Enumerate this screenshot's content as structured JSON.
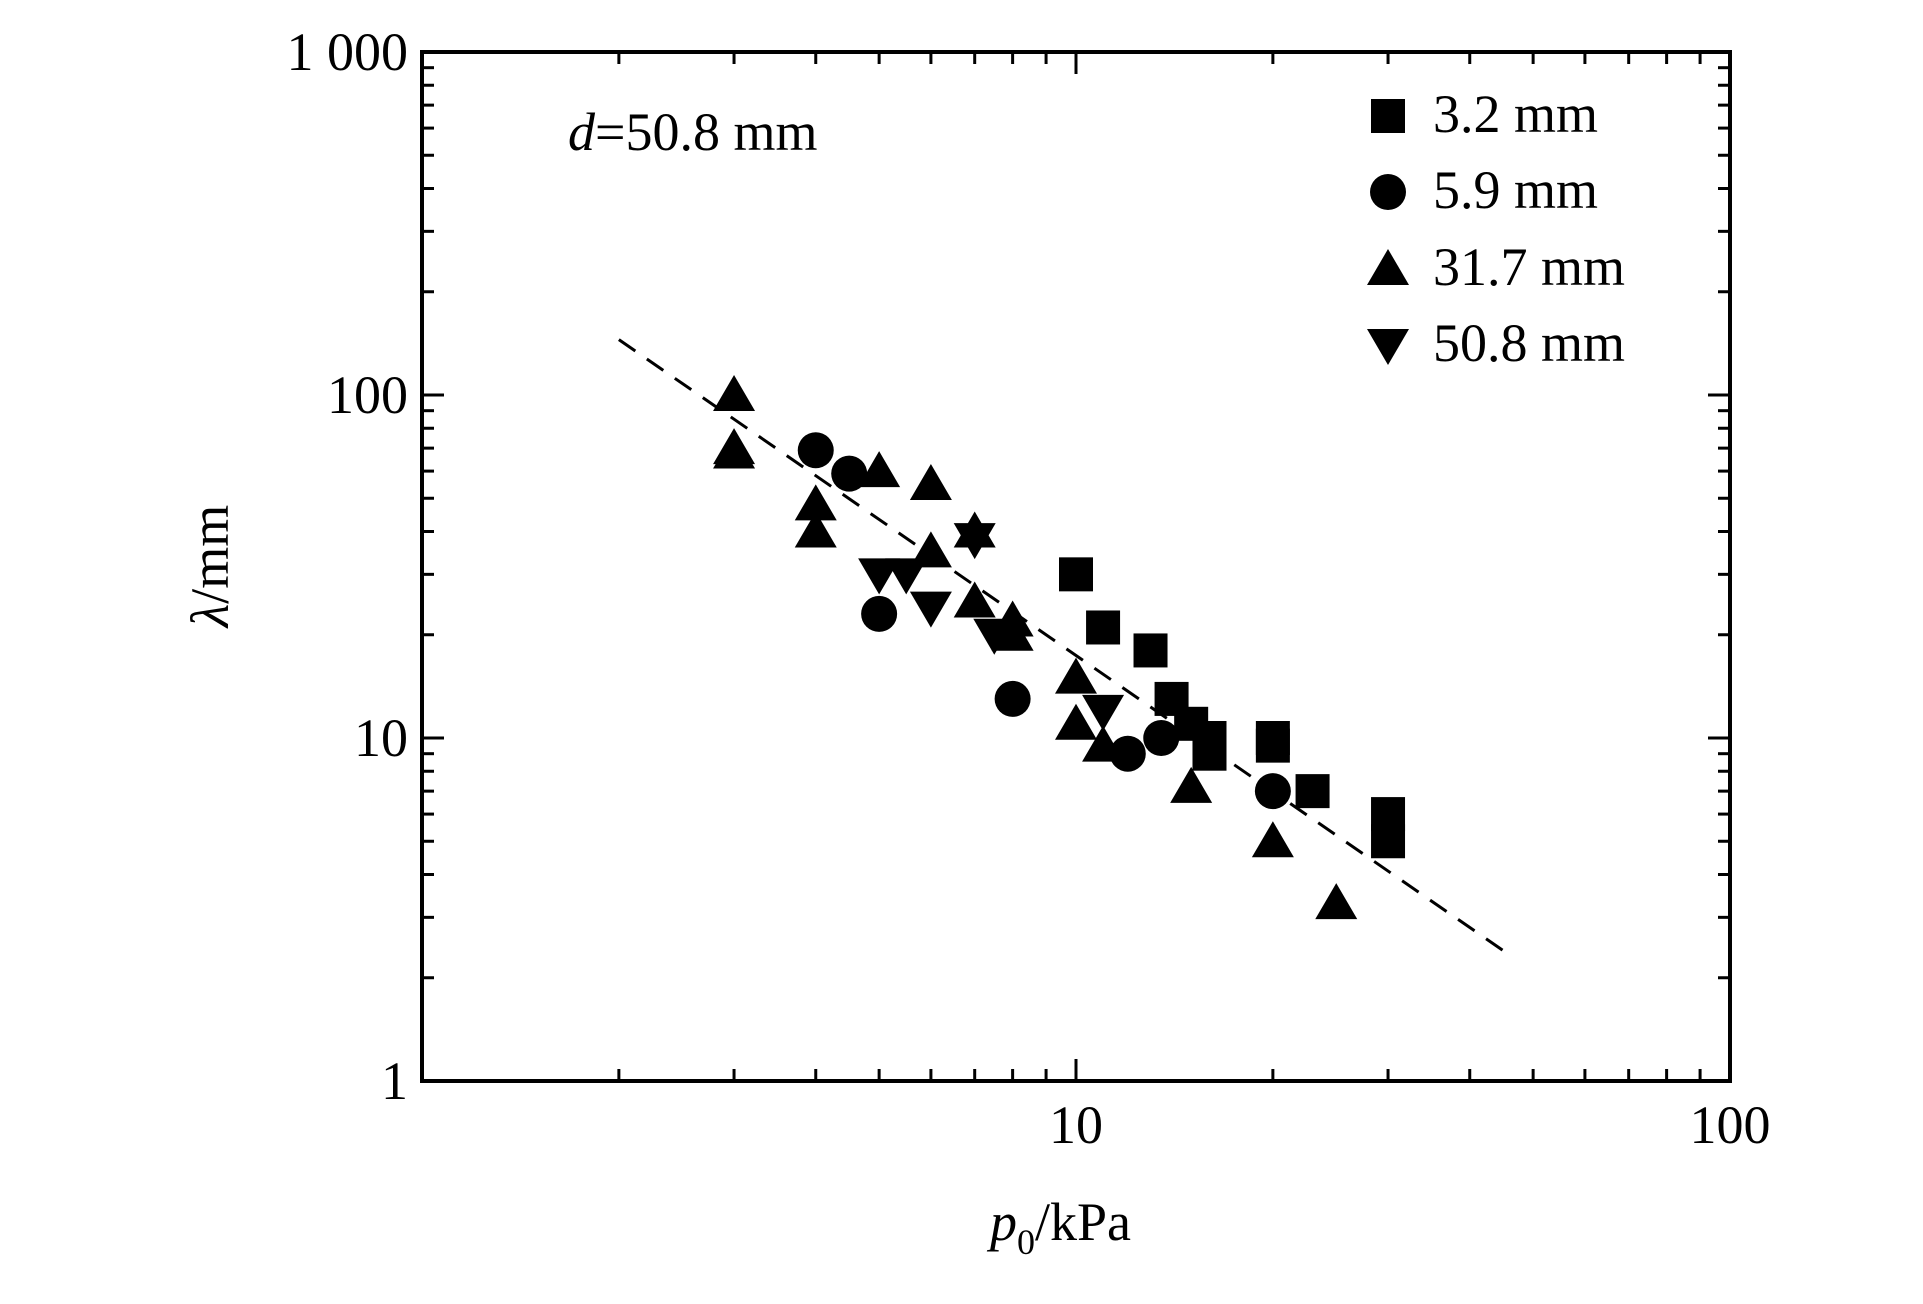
{
  "chart_data": {
    "type": "scatter",
    "title": "",
    "annotation": {
      "italic": "d",
      "rest": "=50.8 mm"
    },
    "xlabel": {
      "main": "p",
      "sub": "0",
      "unit": "/kPa"
    },
    "ylabel": {
      "main": "λ",
      "unit": "/mm"
    },
    "xscale": "log",
    "yscale": "log",
    "xlim": [
      1,
      100
    ],
    "ylim": [
      1,
      1000
    ],
    "x_ticks": [
      {
        "value": 10,
        "label": "10"
      },
      {
        "value": 100,
        "label": "100"
      }
    ],
    "y_ticks": [
      {
        "value": 1,
        "label": "1"
      },
      {
        "value": 10,
        "label": "10"
      },
      {
        "value": 100,
        "label": "100"
      },
      {
        "value": 1000,
        "label": "1 000"
      }
    ],
    "legend_position": "top-right",
    "series": [
      {
        "name": "3.2 mm",
        "marker": "square",
        "points": [
          [
            10,
            30
          ],
          [
            11,
            21
          ],
          [
            13,
            18
          ],
          [
            14,
            13
          ],
          [
            15,
            11
          ],
          [
            16,
            9
          ],
          [
            16,
            10
          ],
          [
            20,
            10
          ],
          [
            20,
            9.5
          ],
          [
            23,
            7
          ],
          [
            30,
            6
          ],
          [
            30,
            5
          ]
        ]
      },
      {
        "name": "5.9 mm",
        "marker": "circle",
        "points": [
          [
            4,
            69
          ],
          [
            4.5,
            59
          ],
          [
            5,
            23
          ],
          [
            8,
            13
          ],
          [
            12,
            9
          ],
          [
            13.5,
            10
          ],
          [
            20,
            7
          ]
        ]
      },
      {
        "name": "31.7 mm",
        "marker": "triangle-up",
        "points": [
          [
            3,
            100
          ],
          [
            3,
            70
          ],
          [
            3,
            68
          ],
          [
            4,
            48
          ],
          [
            4,
            40
          ],
          [
            5,
            60
          ],
          [
            6,
            55
          ],
          [
            6,
            35
          ],
          [
            7,
            25
          ],
          [
            7,
            40
          ],
          [
            8,
            22
          ],
          [
            8,
            20
          ],
          [
            10,
            15
          ],
          [
            10,
            11
          ],
          [
            11,
            9.5
          ],
          [
            15,
            7.2
          ],
          [
            20,
            5
          ],
          [
            25,
            3.3
          ]
        ]
      },
      {
        "name": "50.8 mm",
        "marker": "triangle-down",
        "points": [
          [
            5,
            30
          ],
          [
            5.5,
            30
          ],
          [
            6,
            24
          ],
          [
            7,
            38
          ],
          [
            7.5,
            20
          ],
          [
            11,
            12
          ]
        ]
      }
    ],
    "fit_line": {
      "style": "dashed",
      "points": [
        [
          2,
          145
        ],
        [
          45,
          2.4
        ]
      ]
    },
    "colors": {
      "markers": "#000000",
      "axes": "#000000",
      "background": "#ffffff"
    }
  }
}
